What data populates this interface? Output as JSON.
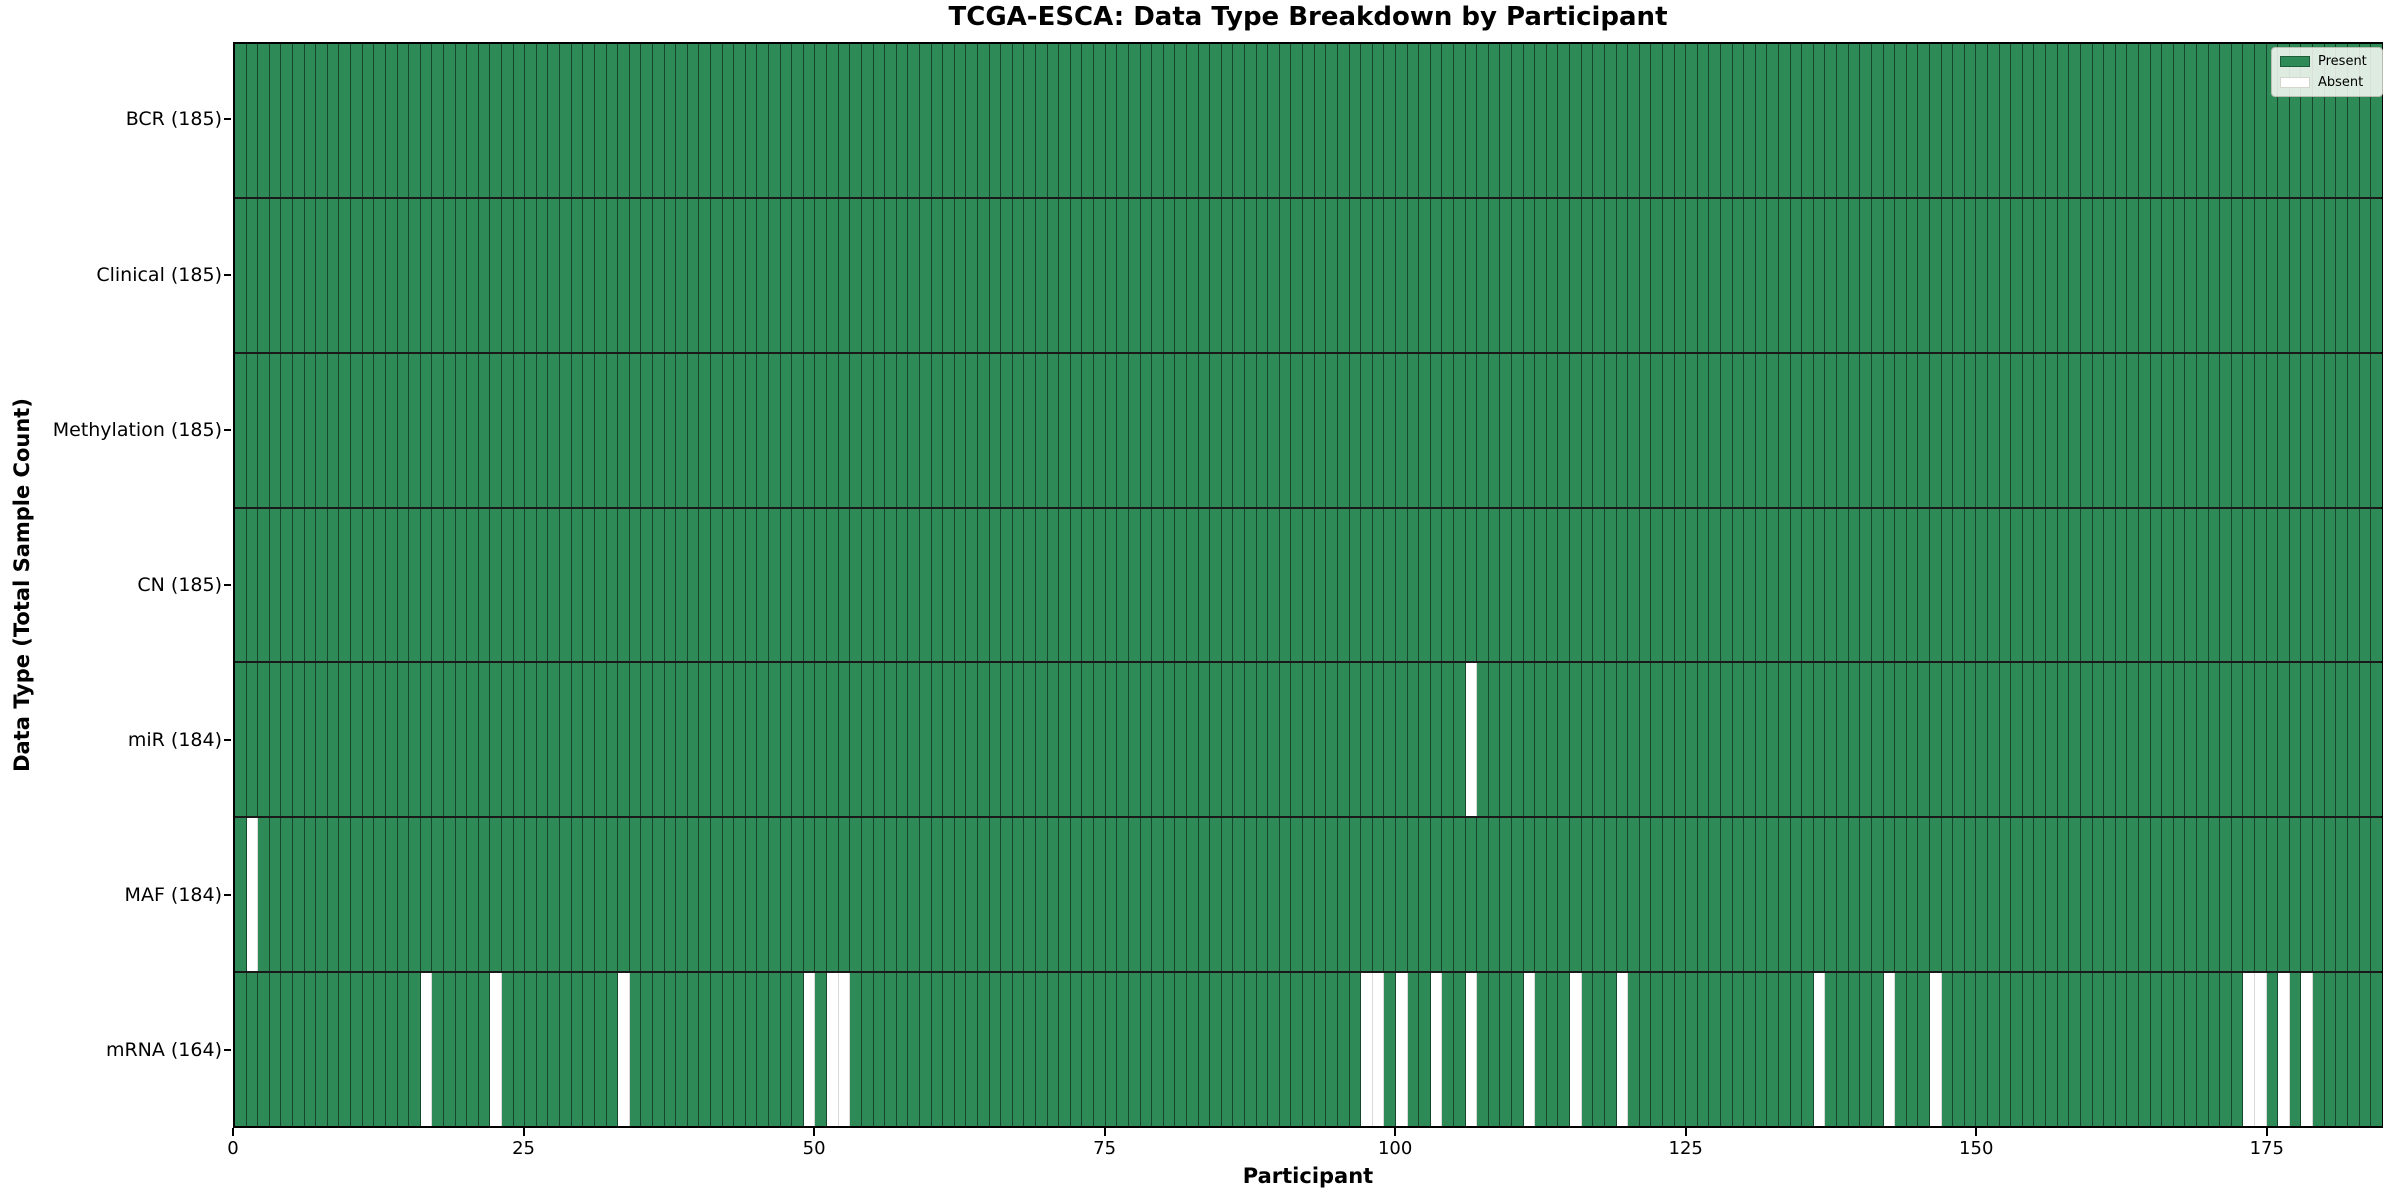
{
  "title": "TCGA-ESCA: Data Type Breakdown by Participant",
  "xlabel": "Participant",
  "ylabel": "Data Type (Total Sample Count)",
  "legend": {
    "present_label": "Present",
    "absent_label": "Absent"
  },
  "colors": {
    "present": "#2e8b57",
    "absent": "#ffffff"
  },
  "chart_data": {
    "type": "heatmap",
    "x_axis": {
      "label": "Participant",
      "range": [
        0,
        185
      ],
      "ticks": [
        0,
        25,
        50,
        75,
        100,
        125,
        150,
        175
      ]
    },
    "n_participants": 185,
    "rows": [
      {
        "label": "BCR (185)",
        "data_type": "BCR",
        "total": 185,
        "absent_participants": []
      },
      {
        "label": "Clinical (185)",
        "data_type": "Clinical",
        "total": 185,
        "absent_participants": []
      },
      {
        "label": "Methylation (185)",
        "data_type": "Methylation",
        "total": 185,
        "absent_participants": []
      },
      {
        "label": "CN (185)",
        "data_type": "CN",
        "total": 185,
        "absent_participants": []
      },
      {
        "label": "miR (184)",
        "data_type": "miR",
        "total": 184,
        "absent_participants": [
          106
        ]
      },
      {
        "label": "MAF (184)",
        "data_type": "MAF",
        "total": 184,
        "absent_participants": [
          1
        ]
      },
      {
        "label": "mRNA (164)",
        "data_type": "mRNA",
        "total": 164,
        "absent_participants": [
          16,
          22,
          33,
          49,
          51,
          52,
          97,
          98,
          100,
          103,
          106,
          111,
          115,
          119,
          136,
          142,
          146,
          173,
          174,
          176,
          178
        ]
      }
    ],
    "legend_entries": [
      {
        "label": "Present",
        "color": "#2e8b57"
      },
      {
        "label": "Absent",
        "color": "#ffffff"
      }
    ]
  }
}
